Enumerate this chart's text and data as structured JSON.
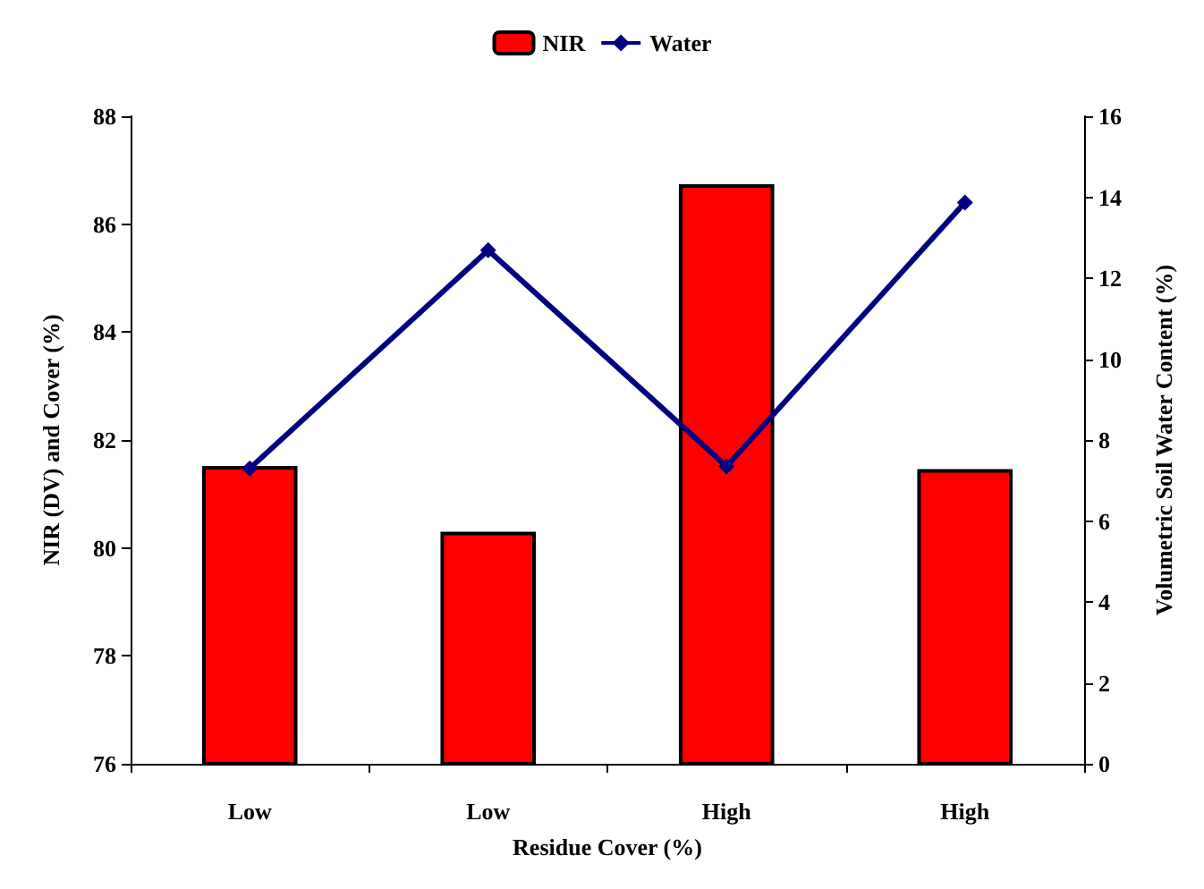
{
  "chart_data": {
    "type": "bar",
    "xlabel": "Residue Cover (%)",
    "ylabel": "NIR (DV) and Cover (%)",
    "y2label": "Volumetric Soil Water Content (%)",
    "categories": [
      "Low",
      "Low",
      "High",
      "High"
    ],
    "series": [
      {
        "name": "NIR",
        "color": "#ff0000",
        "values": [
          81.52,
          80.3,
          86.74,
          81.46
        ]
      },
      {
        "name": "Water",
        "type": "line",
        "axis": "y2",
        "color": "#000080",
        "values": [
          7.3,
          12.69,
          7.35,
          13.87
        ]
      }
    ],
    "ylim": [
      76,
      88
    ],
    "yticks": [
      76,
      78,
      80,
      82,
      84,
      86,
      88
    ],
    "y2lim": [
      0,
      16
    ],
    "y2ticks": [
      0,
      2,
      4,
      6,
      8,
      10,
      12,
      14,
      16
    ],
    "legend": "top",
    "grid": false,
    "marker": "diamond"
  }
}
